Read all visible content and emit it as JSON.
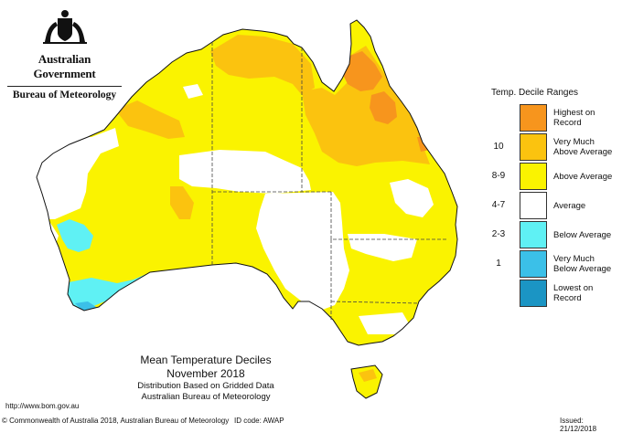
{
  "header": {
    "government": "Australian Government",
    "bureau": "Bureau of Meteorology"
  },
  "legend": {
    "title": "Temp. Decile Ranges",
    "items": [
      {
        "range": "",
        "label": "Highest on Record",
        "color": "#f7951d"
      },
      {
        "range": "10",
        "label": "Very Much Above Average",
        "color": "#fbc30f"
      },
      {
        "range": "8-9",
        "label": "Above Average",
        "color": "#faf300"
      },
      {
        "range": "4-7",
        "label": "Average",
        "color": "#ffffff"
      },
      {
        "range": "2-3",
        "label": "Below Average",
        "color": "#5ff1f4"
      },
      {
        "range": "1",
        "label": "Very Much Below Average",
        "color": "#3bc0e8"
      },
      {
        "range": "",
        "label": "Lowest on Record",
        "color": "#1b95c4"
      }
    ]
  },
  "caption": {
    "title": "Mean Temperature Deciles",
    "period": "November 2018",
    "line1": "Distribution Based on Gridded Data",
    "line2": "Australian Bureau of Meteorology"
  },
  "footer": {
    "url": "http://www.bom.gov.au",
    "copyright": "© Commonwealth of Australia 2018, Australian Bureau of Meteorology",
    "id_code": "ID code: AWAP",
    "issued": "Issued: 21/12/2018"
  }
}
